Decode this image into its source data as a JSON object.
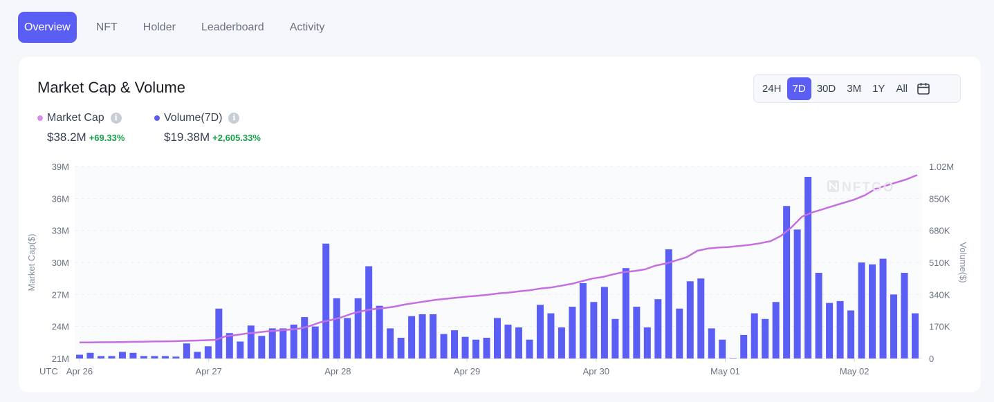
{
  "tabs": [
    "Overview",
    "NFT",
    "Holder",
    "Leaderboard",
    "Activity"
  ],
  "chart_header": {
    "title": "Market Cap & Volume",
    "ranges": [
      "24H",
      "7D",
      "30D",
      "3M",
      "1Y",
      "All"
    ],
    "active_range": "7D",
    "calendar_icon": "calendar-icon"
  },
  "legend": {
    "market_cap": {
      "label": "Market Cap",
      "value": "$38.2M",
      "change": "+69.33%"
    },
    "volume": {
      "label": "Volume(7D)",
      "value": "$19.38M",
      "change": "+2,605.33%"
    }
  },
  "watermark": "NFTGO",
  "colors": {
    "accent": "#5b5ef4",
    "bar": "#5b5ef4",
    "line": "#c56ee0",
    "positive": "#16a34a"
  },
  "chart_data": {
    "type": "bar",
    "xlabel": "UTC",
    "x_ticks": [
      "Apr 26",
      "Apr 27",
      "Apr 28",
      "Apr 29",
      "Apr 30",
      "May 01",
      "May 02"
    ],
    "y_left": {
      "label": "Market Cap($)",
      "ticks": [
        "21M",
        "24M",
        "27M",
        "30M",
        "33M",
        "36M",
        "39M"
      ],
      "range": [
        21,
        39
      ],
      "unit": "M"
    },
    "y_right": {
      "label": "Volume($)",
      "ticks": [
        "0",
        "170K",
        "340K",
        "510K",
        "680K",
        "850K",
        "1.02M"
      ],
      "range": [
        0,
        1020
      ],
      "unit": "K"
    },
    "grid": true,
    "series": [
      {
        "name": "Volume(7D)",
        "type": "bar",
        "axis": "right",
        "values": [
          20,
          30,
          13,
          13,
          35,
          30,
          13,
          13,
          13,
          10,
          80,
          35,
          65,
          265,
          135,
          90,
          175,
          120,
          160,
          160,
          180,
          220,
          170,
          610,
          320,
          215,
          320,
          490,
          280,
          160,
          110,
          225,
          235,
          235,
          130,
          150,
          115,
          100,
          110,
          215,
          180,
          165,
          100,
          285,
          240,
          165,
          275,
          400,
          300,
          380,
          210,
          480,
          275,
          165,
          315,
          580,
          265,
          410,
          425,
          160,
          100,
          0,
          125,
          240,
          210,
          300,
          810,
          685,
          965,
          455,
          295,
          305,
          255,
          510,
          500,
          530,
          340,
          455,
          240
        ],
        "unit": "K"
      },
      {
        "name": "Market Cap",
        "type": "line",
        "axis": "left",
        "values": [
          22.5,
          22.51,
          22.52,
          22.53,
          22.54,
          22.56,
          22.57,
          22.59,
          22.6,
          22.62,
          22.65,
          22.68,
          22.71,
          22.75,
          23.1,
          23.2,
          23.35,
          23.45,
          23.55,
          23.62,
          23.7,
          23.8,
          24.05,
          24.4,
          24.6,
          24.85,
          25.2,
          25.45,
          25.62,
          25.72,
          25.85,
          26.05,
          26.2,
          26.35,
          26.5,
          26.6,
          26.7,
          26.8,
          26.88,
          26.97,
          27.1,
          27.18,
          27.3,
          27.4,
          27.55,
          27.65,
          27.82,
          28.0,
          28.25,
          28.5,
          28.65,
          28.9,
          29.1,
          29.2,
          29.35,
          29.7,
          29.9,
          30.2,
          30.5,
          31.1,
          31.3,
          31.4,
          31.45,
          31.55,
          31.65,
          31.8,
          32.0,
          32.5,
          33.3,
          34.3,
          34.7,
          35.0,
          35.3,
          35.6,
          35.9,
          36.3,
          36.9,
          37.2,
          37.5,
          37.8,
          38.2
        ]
      }
    ]
  }
}
